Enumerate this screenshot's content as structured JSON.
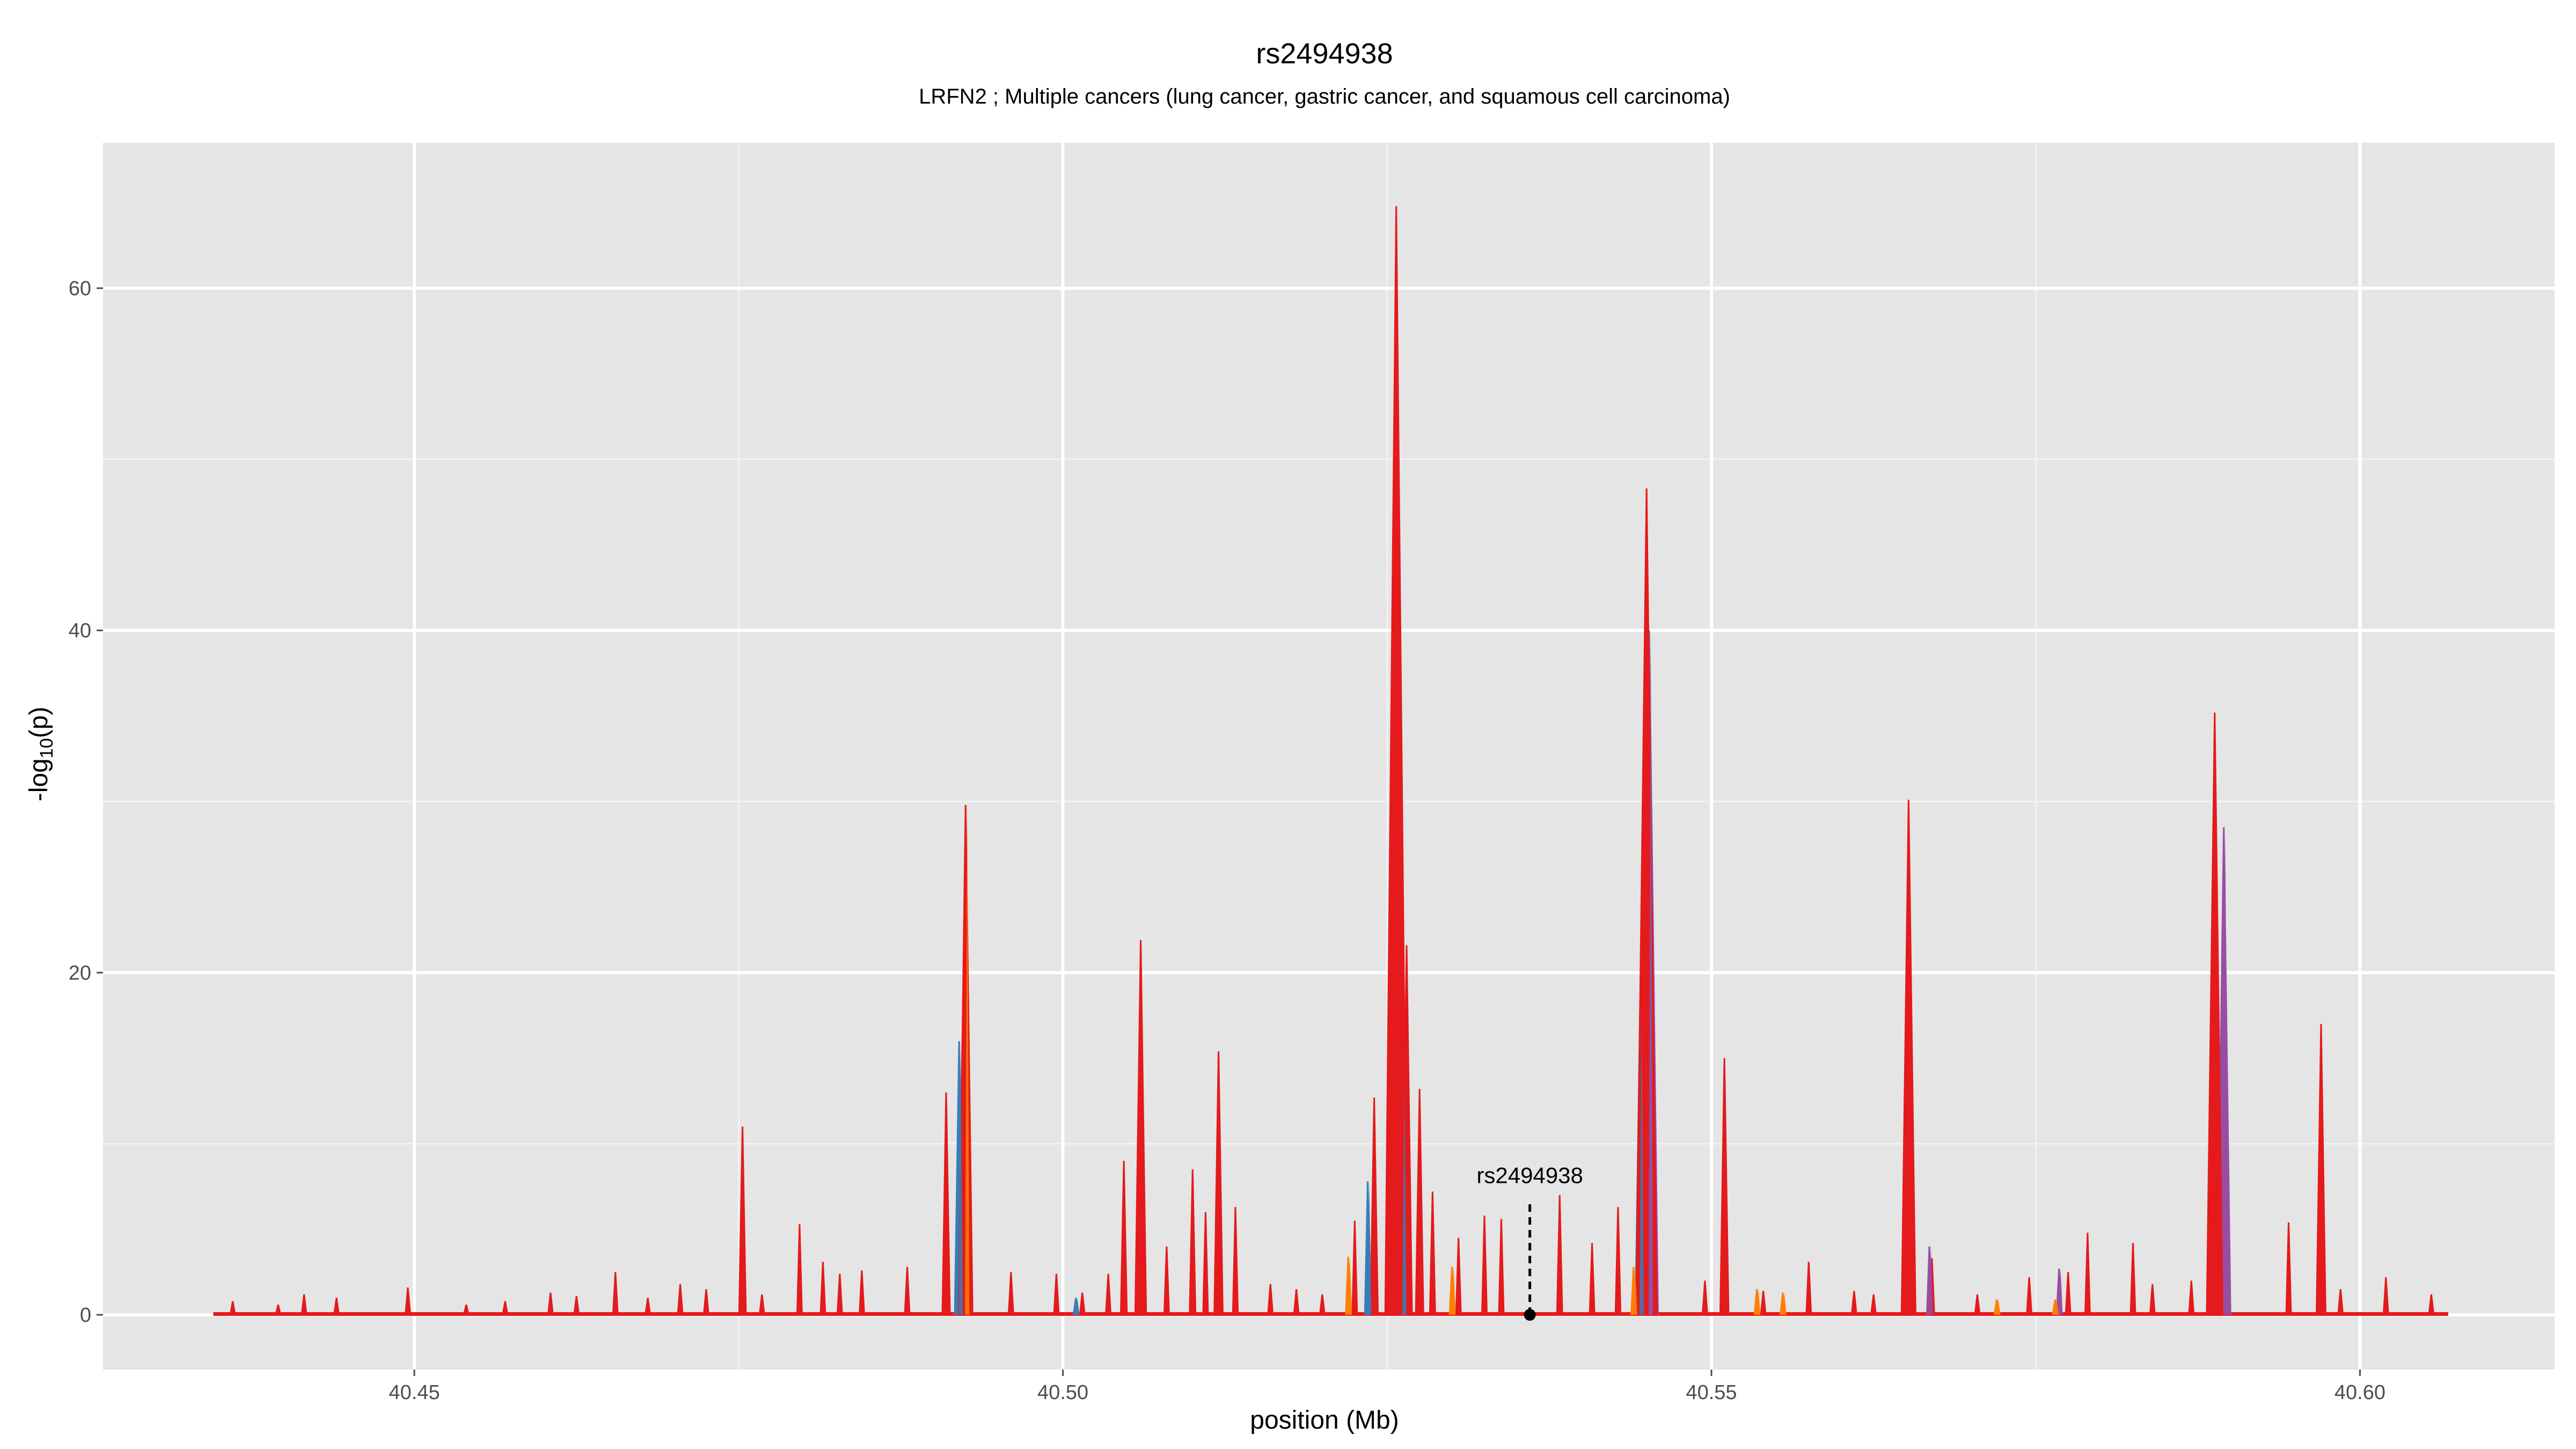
{
  "chart_data": {
    "type": "area",
    "title": "rs2494938",
    "subtitle": "LRFN2 ; Multiple cancers (lung cancer, gastric cancer, and squamous cell carcinoma)",
    "xlabel": "position (Mb)",
    "ylabel_main": "-log",
    "ylabel_sub": "10",
    "ylabel_tail": "(p)",
    "xlim": [
      40.426,
      40.615
    ],
    "ylim": [
      -3.2,
      68.5
    ],
    "x_ticks": [
      {
        "value": 40.45,
        "label": "40.45"
      },
      {
        "value": 40.5,
        "label": "40.50"
      },
      {
        "value": 40.55,
        "label": "40.55"
      },
      {
        "value": 40.6,
        "label": "40.60"
      }
    ],
    "y_ticks": [
      {
        "value": 0,
        "label": "0"
      },
      {
        "value": 20,
        "label": "20"
      },
      {
        "value": 40,
        "label": "40"
      },
      {
        "value": 60,
        "label": "60"
      }
    ],
    "grid": true,
    "panel_color": "#e5e5e5",
    "baseline_range": [
      40.4345,
      40.6068
    ],
    "series": [
      {
        "color": "#e41a1c",
        "peaks": [
          [
            40.436,
            0.8
          ],
          [
            40.4395,
            0.6
          ],
          [
            40.4415,
            1.2
          ],
          [
            40.444,
            1.0
          ],
          [
            40.4495,
            1.6
          ],
          [
            40.454,
            0.6
          ],
          [
            40.457,
            0.8
          ],
          [
            40.4605,
            1.3
          ],
          [
            40.4625,
            1.1
          ],
          [
            40.4655,
            2.5
          ],
          [
            40.468,
            1.0
          ],
          [
            40.4705,
            1.8
          ],
          [
            40.4725,
            1.5
          ],
          [
            40.4753,
            11.0
          ],
          [
            40.4768,
            1.2
          ],
          [
            40.4797,
            5.3
          ],
          [
            40.4815,
            3.1
          ],
          [
            40.4828,
            2.4
          ],
          [
            40.4845,
            2.6
          ],
          [
            40.488,
            2.8
          ],
          [
            40.491,
            13.0
          ],
          [
            40.4925,
            29.8
          ],
          [
            40.496,
            2.5
          ],
          [
            40.4995,
            2.4
          ],
          [
            40.5015,
            1.3
          ],
          [
            40.5035,
            2.4
          ],
          [
            40.5047,
            9.0
          ],
          [
            40.506,
            21.9
          ],
          [
            40.508,
            4.0
          ],
          [
            40.51,
            8.5
          ],
          [
            40.511,
            6.0
          ],
          [
            40.512,
            15.4
          ],
          [
            40.5133,
            6.3
          ],
          [
            40.516,
            1.8
          ],
          [
            40.518,
            1.5
          ],
          [
            40.52,
            1.2
          ],
          [
            40.5225,
            5.5
          ],
          [
            40.524,
            12.7
          ],
          [
            40.5257,
            64.8
          ],
          [
            40.5265,
            21.6
          ],
          [
            40.5275,
            13.2
          ],
          [
            40.5285,
            7.2
          ],
          [
            40.5305,
            4.5
          ],
          [
            40.5325,
            5.8
          ],
          [
            40.5338,
            5.6
          ],
          [
            40.5383,
            7.0
          ],
          [
            40.5408,
            4.2
          ],
          [
            40.5428,
            6.3
          ],
          [
            40.5448,
            2.5
          ],
          [
            40.545,
            48.3
          ],
          [
            40.5495,
            2.0
          ],
          [
            40.551,
            15.0
          ],
          [
            40.554,
            1.4
          ],
          [
            40.5575,
            3.1
          ],
          [
            40.561,
            1.4
          ],
          [
            40.5625,
            1.2
          ],
          [
            40.5652,
            30.1
          ],
          [
            40.567,
            3.3
          ],
          [
            40.5705,
            1.2
          ],
          [
            40.5745,
            2.2
          ],
          [
            40.5775,
            2.5
          ],
          [
            40.579,
            4.8
          ],
          [
            40.5825,
            4.2
          ],
          [
            40.584,
            1.8
          ],
          [
            40.587,
            2.0
          ],
          [
            40.5888,
            35.2
          ],
          [
            40.5945,
            5.4
          ],
          [
            40.597,
            17.0
          ],
          [
            40.5985,
            1.5
          ],
          [
            40.602,
            2.2
          ],
          [
            40.6055,
            1.2
          ]
        ]
      },
      {
        "color": "#ff7f00",
        "peaks": [
          [
            40.4925,
            29.8
          ],
          [
            40.522,
            3.4
          ],
          [
            40.53,
            2.8
          ],
          [
            40.544,
            2.8
          ],
          [
            40.5535,
            1.5
          ],
          [
            40.5555,
            1.3
          ],
          [
            40.572,
            0.9
          ],
          [
            40.5765,
            0.9
          ]
        ]
      },
      {
        "color": "#377eb8",
        "peaks": [
          [
            40.492,
            16.0
          ],
          [
            40.501,
            1.0
          ],
          [
            40.5235,
            7.8
          ],
          [
            40.5262,
            13.8
          ],
          [
            40.5452,
            35.0
          ],
          [
            40.5445,
            18.0
          ]
        ]
      },
      {
        "color": "#984ea3",
        "peaks": [
          [
            40.5452,
            40.0
          ],
          [
            40.5668,
            4.0
          ],
          [
            40.5768,
            2.7
          ],
          [
            40.5895,
            28.5
          ]
        ]
      }
    ],
    "annotation": {
      "label": "rs2494938",
      "x": 40.536,
      "y": 0
    }
  }
}
